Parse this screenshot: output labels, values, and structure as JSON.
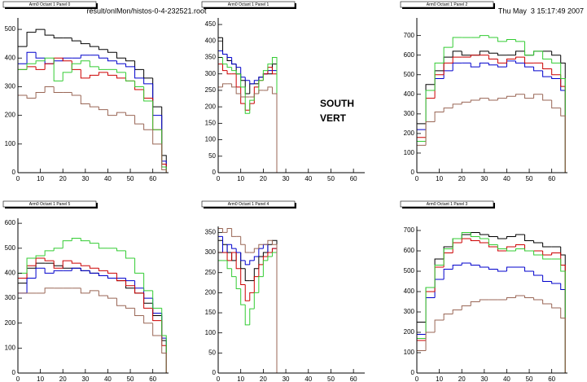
{
  "header": {
    "file": "result/onlMon/histos-0-4-232521.root",
    "date": "Thu May  3 15:17:49 2007"
  },
  "chart_data": [
    {
      "type": "histogram",
      "title": "Arm0 Octant 1 Panel 0",
      "xlim": [
        0,
        67
      ],
      "ylim": [
        0,
        540
      ],
      "xticks": [
        0,
        10,
        20,
        30,
        40,
        50,
        60
      ],
      "yticks": [
        0,
        100,
        200,
        300,
        400,
        500
      ],
      "bins": [
        0,
        4,
        8,
        12,
        16,
        20,
        24,
        28,
        32,
        36,
        40,
        44,
        48,
        52,
        56,
        60,
        64,
        66
      ],
      "series": [
        {
          "color": "#000000",
          "values": [
            440,
            490,
            500,
            480,
            470,
            470,
            460,
            450,
            440,
            430,
            420,
            400,
            390,
            360,
            330,
            230,
            60
          ]
        },
        {
          "color": "#0000cc",
          "values": [
            380,
            420,
            400,
            380,
            390,
            400,
            400,
            410,
            410,
            400,
            390,
            380,
            370,
            330,
            310,
            200,
            40
          ]
        },
        {
          "color": "#cc0000",
          "values": [
            360,
            370,
            360,
            380,
            400,
            390,
            360,
            330,
            340,
            350,
            340,
            330,
            320,
            290,
            260,
            150,
            30
          ]
        },
        {
          "color": "#33cc33",
          "values": [
            360,
            380,
            390,
            400,
            320,
            350,
            380,
            390,
            370,
            360,
            360,
            350,
            320,
            300,
            250,
            150,
            20
          ]
        },
        {
          "color": "#996655",
          "values": [
            270,
            260,
            280,
            300,
            280,
            280,
            270,
            240,
            230,
            220,
            200,
            210,
            200,
            170,
            150,
            100,
            10
          ]
        }
      ]
    },
    {
      "type": "histogram",
      "title": "Arm0 Octant 1 Panel 1",
      "xlim": [
        0,
        65
      ],
      "ylim": [
        0,
        470
      ],
      "xticks": [
        0,
        10,
        20,
        30,
        40,
        50,
        60
      ],
      "yticks": [
        0,
        50,
        100,
        150,
        200,
        250,
        300,
        350,
        400,
        450
      ],
      "annotations": [
        "SOUTH",
        "VERT"
      ],
      "bins": [
        0,
        2,
        4,
        6,
        8,
        10,
        12,
        14,
        16,
        18,
        20,
        22,
        24,
        26
      ],
      "series": [
        {
          "color": "#000000",
          "values": [
            410,
            360,
            340,
            330,
            300,
            280,
            240,
            270,
            270,
            290,
            300,
            300,
            330
          ]
        },
        {
          "color": "#0000cc",
          "values": [
            370,
            360,
            350,
            330,
            320,
            290,
            280,
            270,
            280,
            290,
            300,
            310,
            310
          ]
        },
        {
          "color": "#cc0000",
          "values": [
            330,
            310,
            300,
            300,
            260,
            210,
            190,
            210,
            260,
            280,
            300,
            320,
            300
          ]
        },
        {
          "color": "#33cc33",
          "values": [
            350,
            330,
            320,
            310,
            300,
            260,
            180,
            220,
            240,
            280,
            310,
            330,
            350
          ]
        },
        {
          "color": "#996655",
          "values": [
            260,
            270,
            270,
            260,
            240,
            230,
            230,
            230,
            240,
            250,
            250,
            260,
            240
          ]
        }
      ]
    },
    {
      "type": "histogram",
      "title": "Arm0 Octant 1 Panel 2",
      "xlim": [
        0,
        67
      ],
      "ylim": [
        0,
        790
      ],
      "xticks": [
        0,
        10,
        20,
        30,
        40,
        50,
        60
      ],
      "yticks": [
        0,
        100,
        200,
        300,
        400,
        500,
        600,
        700
      ],
      "bins": [
        0,
        4,
        8,
        12,
        16,
        20,
        24,
        28,
        32,
        36,
        40,
        44,
        48,
        52,
        56,
        60,
        64,
        66
      ],
      "series": [
        {
          "color": "#000000",
          "values": [
            250,
            450,
            520,
            590,
            620,
            600,
            600,
            620,
            610,
            600,
            600,
            620,
            600,
            620,
            620,
            600,
            560
          ]
        },
        {
          "color": "#0000cc",
          "values": [
            220,
            420,
            480,
            520,
            560,
            560,
            540,
            560,
            550,
            540,
            570,
            560,
            540,
            520,
            490,
            480,
            420
          ]
        },
        {
          "color": "#cc0000",
          "values": [
            180,
            380,
            500,
            560,
            590,
            590,
            600,
            600,
            580,
            560,
            580,
            590,
            560,
            560,
            530,
            500,
            440
          ]
        },
        {
          "color": "#33cc33",
          "values": [
            160,
            420,
            560,
            640,
            690,
            690,
            690,
            700,
            690,
            670,
            680,
            670,
            600,
            620,
            580,
            560,
            480
          ]
        },
        {
          "color": "#996655",
          "values": [
            140,
            260,
            310,
            330,
            350,
            360,
            370,
            380,
            370,
            380,
            390,
            400,
            380,
            400,
            370,
            330,
            290
          ]
        }
      ]
    },
    {
      "type": "histogram",
      "title": "Arm0 Octant 1 Panel 5",
      "xlim": [
        0,
        67
      ],
      "ylim": [
        0,
        620
      ],
      "xticks": [
        0,
        10,
        20,
        30,
        40,
        50,
        60
      ],
      "yticks": [
        0,
        100,
        200,
        300,
        400,
        500,
        600
      ],
      "bins": [
        0,
        4,
        8,
        12,
        16,
        20,
        24,
        28,
        32,
        36,
        40,
        44,
        48,
        52,
        56,
        60,
        64,
        66
      ],
      "series": [
        {
          "color": "#000000",
          "values": [
            360,
            420,
            440,
            440,
            430,
            420,
            420,
            410,
            400,
            390,
            380,
            370,
            340,
            320,
            280,
            230,
            130
          ]
        },
        {
          "color": "#0000cc",
          "values": [
            320,
            380,
            420,
            400,
            410,
            410,
            420,
            410,
            400,
            390,
            380,
            380,
            370,
            340,
            300,
            240,
            140
          ]
        },
        {
          "color": "#cc0000",
          "values": [
            380,
            430,
            460,
            450,
            420,
            450,
            440,
            430,
            420,
            410,
            400,
            370,
            350,
            320,
            260,
            210,
            110
          ]
        },
        {
          "color": "#33cc33",
          "values": [
            400,
            460,
            470,
            490,
            500,
            530,
            540,
            530,
            520,
            500,
            500,
            490,
            460,
            400,
            330,
            260,
            150
          ]
        },
        {
          "color": "#996655",
          "values": [
            320,
            320,
            320,
            340,
            340,
            340,
            340,
            320,
            330,
            310,
            300,
            270,
            260,
            230,
            200,
            150,
            80
          ]
        }
      ]
    },
    {
      "type": "histogram",
      "title": "Arm0 Octant 1 Panel 4",
      "xlim": [
        0,
        65
      ],
      "ylim": [
        0,
        365
      ],
      "xticks": [
        0,
        10,
        20,
        30,
        40,
        50,
        60
      ],
      "yticks": [
        0,
        50,
        100,
        150,
        200,
        250,
        300,
        350
      ],
      "bins": [
        0,
        2,
        4,
        6,
        8,
        10,
        12,
        14,
        16,
        18,
        20,
        22,
        24,
        26
      ],
      "series": [
        {
          "color": "#000000",
          "values": [
            330,
            320,
            300,
            280,
            300,
            260,
            230,
            230,
            260,
            290,
            300,
            320,
            330
          ]
        },
        {
          "color": "#0000cc",
          "values": [
            340,
            300,
            320,
            310,
            300,
            280,
            270,
            280,
            290,
            310,
            320,
            300,
            310
          ]
        },
        {
          "color": "#cc0000",
          "values": [
            300,
            300,
            280,
            300,
            260,
            220,
            180,
            200,
            240,
            270,
            290,
            300,
            310
          ]
        },
        {
          "color": "#33cc33",
          "values": [
            280,
            280,
            260,
            240,
            210,
            170,
            120,
            160,
            200,
            240,
            280,
            290,
            300
          ]
        },
        {
          "color": "#996655",
          "values": [
            360,
            350,
            360,
            340,
            340,
            320,
            300,
            300,
            310,
            320,
            320,
            330,
            320
          ]
        }
      ]
    },
    {
      "type": "histogram",
      "title": "Arm0 Octant 1 Panel 3",
      "xlim": [
        0,
        67
      ],
      "ylim": [
        0,
        720
      ],
      "xticks": [
        0,
        10,
        20,
        30,
        40,
        50,
        60
      ],
      "yticks": [
        0,
        100,
        200,
        300,
        400,
        500,
        600,
        700
      ],
      "bins": [
        0,
        4,
        8,
        12,
        16,
        20,
        24,
        28,
        32,
        36,
        40,
        44,
        48,
        52,
        56,
        60,
        64,
        66
      ],
      "series": [
        {
          "color": "#000000",
          "values": [
            250,
            420,
            560,
            620,
            660,
            680,
            690,
            680,
            670,
            660,
            670,
            680,
            650,
            640,
            620,
            620,
            580
          ]
        },
        {
          "color": "#0000cc",
          "values": [
            190,
            370,
            460,
            510,
            530,
            540,
            530,
            520,
            510,
            500,
            520,
            520,
            500,
            480,
            450,
            440,
            410
          ]
        },
        {
          "color": "#cc0000",
          "values": [
            160,
            400,
            520,
            590,
            640,
            660,
            650,
            640,
            620,
            600,
            620,
            630,
            600,
            600,
            580,
            590,
            530
          ]
        },
        {
          "color": "#33cc33",
          "values": [
            170,
            420,
            530,
            610,
            660,
            690,
            670,
            660,
            630,
            610,
            600,
            610,
            600,
            580,
            560,
            560,
            500
          ]
        },
        {
          "color": "#996655",
          "values": [
            110,
            200,
            260,
            290,
            310,
            330,
            350,
            360,
            360,
            360,
            370,
            380,
            370,
            360,
            340,
            320,
            270
          ]
        }
      ]
    }
  ]
}
